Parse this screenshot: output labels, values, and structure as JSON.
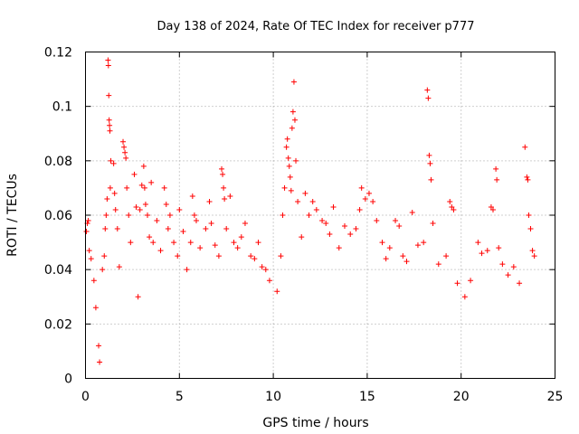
{
  "chart_data": {
    "type": "scatter",
    "title": "Day 138 of 2024, Rate Of TEC Index for receiver p777",
    "xlabel": "GPS time / hours",
    "ylabel": "ROTI / TECUs",
    "xlim": [
      0,
      25
    ],
    "ylim": [
      0,
      0.12
    ],
    "xticks": [
      0,
      5,
      10,
      15,
      20,
      25
    ],
    "xtick_labels": [
      "0",
      "5",
      "10",
      "15",
      "20",
      "25"
    ],
    "yticks": [
      0,
      0.02,
      0.04,
      0.06,
      0.08,
      0.1,
      0.12
    ],
    "ytick_labels": [
      "0",
      "0.02",
      "0.04",
      "0.06",
      "0.08",
      "0.1",
      "0.12"
    ],
    "grid": true,
    "marker": "+",
    "color": "#ff0000",
    "series": [
      {
        "name": "ROTI",
        "points": [
          [
            0.05,
            0.054
          ],
          [
            0.1,
            0.057
          ],
          [
            0.15,
            0.058
          ],
          [
            0.2,
            0.047
          ],
          [
            0.3,
            0.044
          ],
          [
            0.45,
            0.036
          ],
          [
            0.55,
            0.026
          ],
          [
            0.7,
            0.012
          ],
          [
            0.75,
            0.006
          ],
          [
            0.9,
            0.04
          ],
          [
            1.0,
            0.045
          ],
          [
            1.05,
            0.055
          ],
          [
            1.1,
            0.06
          ],
          [
            1.15,
            0.066
          ],
          [
            1.2,
            0.117
          ],
          [
            1.22,
            0.115
          ],
          [
            1.24,
            0.104
          ],
          [
            1.26,
            0.095
          ],
          [
            1.28,
            0.093
          ],
          [
            1.3,
            0.091
          ],
          [
            1.32,
            0.07
          ],
          [
            1.35,
            0.08
          ],
          [
            1.5,
            0.079
          ],
          [
            1.55,
            0.068
          ],
          [
            1.6,
            0.062
          ],
          [
            1.7,
            0.055
          ],
          [
            1.8,
            0.041
          ],
          [
            2.0,
            0.087
          ],
          [
            2.05,
            0.085
          ],
          [
            2.1,
            0.083
          ],
          [
            2.15,
            0.081
          ],
          [
            2.2,
            0.07
          ],
          [
            2.3,
            0.06
          ],
          [
            2.4,
            0.05
          ],
          [
            2.6,
            0.075
          ],
          [
            2.7,
            0.063
          ],
          [
            2.8,
            0.03
          ],
          [
            2.9,
            0.062
          ],
          [
            3.0,
            0.071
          ],
          [
            3.1,
            0.078
          ],
          [
            3.15,
            0.07
          ],
          [
            3.2,
            0.064
          ],
          [
            3.3,
            0.06
          ],
          [
            3.4,
            0.052
          ],
          [
            3.5,
            0.072
          ],
          [
            3.6,
            0.05
          ],
          [
            3.8,
            0.058
          ],
          [
            4.0,
            0.047
          ],
          [
            4.2,
            0.07
          ],
          [
            4.3,
            0.064
          ],
          [
            4.4,
            0.055
          ],
          [
            4.5,
            0.06
          ],
          [
            4.7,
            0.05
          ],
          [
            4.9,
            0.045
          ],
          [
            5.0,
            0.062
          ],
          [
            5.2,
            0.054
          ],
          [
            5.4,
            0.04
          ],
          [
            5.6,
            0.05
          ],
          [
            5.7,
            0.067
          ],
          [
            5.8,
            0.06
          ],
          [
            5.9,
            0.058
          ],
          [
            6.1,
            0.048
          ],
          [
            6.4,
            0.055
          ],
          [
            6.6,
            0.065
          ],
          [
            6.7,
            0.057
          ],
          [
            6.9,
            0.049
          ],
          [
            7.1,
            0.045
          ],
          [
            7.25,
            0.077
          ],
          [
            7.3,
            0.075
          ],
          [
            7.35,
            0.07
          ],
          [
            7.4,
            0.066
          ],
          [
            7.5,
            0.055
          ],
          [
            7.7,
            0.067
          ],
          [
            7.9,
            0.05
          ],
          [
            8.1,
            0.048
          ],
          [
            8.3,
            0.052
          ],
          [
            8.5,
            0.057
          ],
          [
            8.8,
            0.045
          ],
          [
            9.0,
            0.044
          ],
          [
            9.2,
            0.05
          ],
          [
            9.4,
            0.041
          ],
          [
            9.6,
            0.04
          ],
          [
            9.8,
            0.036
          ],
          [
            10.2,
            0.032
          ],
          [
            10.4,
            0.045
          ],
          [
            10.5,
            0.06
          ],
          [
            10.6,
            0.07
          ],
          [
            10.7,
            0.085
          ],
          [
            10.75,
            0.088
          ],
          [
            10.8,
            0.081
          ],
          [
            10.85,
            0.078
          ],
          [
            10.9,
            0.074
          ],
          [
            10.95,
            0.069
          ],
          [
            11.0,
            0.092
          ],
          [
            11.05,
            0.098
          ],
          [
            11.1,
            0.109
          ],
          [
            11.15,
            0.095
          ],
          [
            11.2,
            0.08
          ],
          [
            11.3,
            0.065
          ],
          [
            11.5,
            0.052
          ],
          [
            11.7,
            0.068
          ],
          [
            11.9,
            0.06
          ],
          [
            12.1,
            0.065
          ],
          [
            12.3,
            0.062
          ],
          [
            12.6,
            0.058
          ],
          [
            12.8,
            0.057
          ],
          [
            13.0,
            0.053
          ],
          [
            13.2,
            0.063
          ],
          [
            13.5,
            0.048
          ],
          [
            13.8,
            0.056
          ],
          [
            14.1,
            0.053
          ],
          [
            14.4,
            0.055
          ],
          [
            14.6,
            0.062
          ],
          [
            14.7,
            0.07
          ],
          [
            14.9,
            0.066
          ],
          [
            15.1,
            0.068
          ],
          [
            15.3,
            0.065
          ],
          [
            15.5,
            0.058
          ],
          [
            15.8,
            0.05
          ],
          [
            16.0,
            0.044
          ],
          [
            16.2,
            0.048
          ],
          [
            16.5,
            0.058
          ],
          [
            16.7,
            0.056
          ],
          [
            16.9,
            0.045
          ],
          [
            17.1,
            0.043
          ],
          [
            17.4,
            0.061
          ],
          [
            17.7,
            0.049
          ],
          [
            18.0,
            0.05
          ],
          [
            18.2,
            0.106
          ],
          [
            18.25,
            0.103
          ],
          [
            18.3,
            0.082
          ],
          [
            18.35,
            0.079
          ],
          [
            18.4,
            0.073
          ],
          [
            18.5,
            0.057
          ],
          [
            18.8,
            0.042
          ],
          [
            19.2,
            0.045
          ],
          [
            19.4,
            0.065
          ],
          [
            19.5,
            0.063
          ],
          [
            19.6,
            0.062
          ],
          [
            19.8,
            0.035
          ],
          [
            20.2,
            0.03
          ],
          [
            20.5,
            0.036
          ],
          [
            20.9,
            0.05
          ],
          [
            21.1,
            0.046
          ],
          [
            21.4,
            0.047
          ],
          [
            21.6,
            0.063
          ],
          [
            21.7,
            0.062
          ],
          [
            21.85,
            0.077
          ],
          [
            21.9,
            0.073
          ],
          [
            22.0,
            0.048
          ],
          [
            22.2,
            0.042
          ],
          [
            22.5,
            0.038
          ],
          [
            22.8,
            0.041
          ],
          [
            23.1,
            0.035
          ],
          [
            23.4,
            0.085
          ],
          [
            23.5,
            0.074
          ],
          [
            23.55,
            0.073
          ],
          [
            23.6,
            0.06
          ],
          [
            23.7,
            0.055
          ],
          [
            23.8,
            0.047
          ],
          [
            23.9,
            0.045
          ]
        ]
      }
    ]
  }
}
